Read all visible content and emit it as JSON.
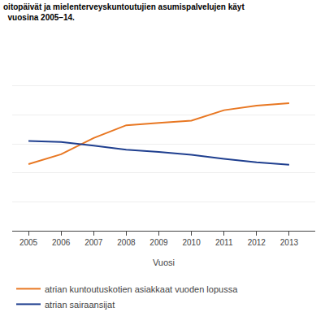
{
  "chart_data": {
    "type": "line",
    "title": "oitopäivät ja mielenterveyskuntoutujien asumispalvelujen käyt",
    "subtitle": "  vuosina 2005–14.",
    "x_label": "Vuosi",
    "x": [
      2005,
      2006,
      2007,
      2008,
      2009,
      2010,
      2011,
      2012,
      2013
    ],
    "series": [
      {
        "name": "atrian kuntoutuskotien asiakkaat vuoden lopussa",
        "color": "#E87722",
        "values": [
          1150,
          1320,
          1600,
          1820,
          1860,
          1900,
          2080,
          2160,
          2200
        ]
      },
      {
        "name": "atrian sairaansijat",
        "color": "#1F3F8F",
        "values": [
          1550,
          1530,
          1470,
          1400,
          1360,
          1310,
          1240,
          1180,
          1140
        ]
      }
    ],
    "xlim": [
      2004.5,
      2013.8
    ],
    "xticks": [
      2005,
      2006,
      2007,
      2008,
      2009,
      2010,
      2011,
      2012,
      2013
    ],
    "ylim": [
      0,
      3000
    ],
    "yticks": [
      0,
      500,
      1000,
      1500,
      2000,
      2500,
      3000
    ],
    "grid": true,
    "tick_labels": "x",
    "legend": "bottom"
  }
}
